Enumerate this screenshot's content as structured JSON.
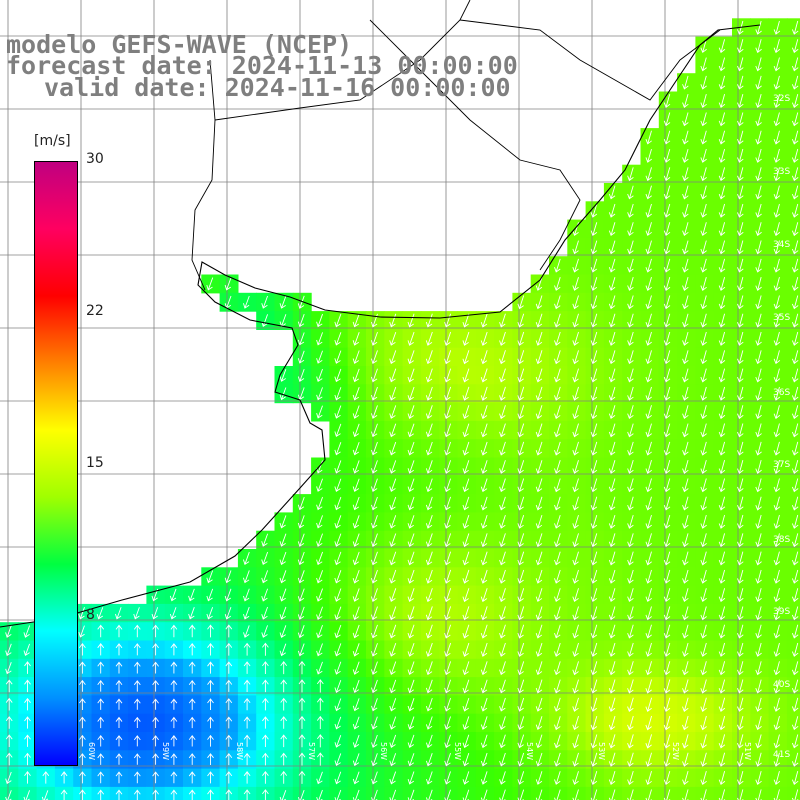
{
  "title": {
    "model": "modelo GEFS-WAVE (NCEP)",
    "forecast": "forecast date: 2024-11-13 00:00:00",
    "valid": "valid date: 2024-11-16 00:00:00"
  },
  "colorbar": {
    "unit": "[m/s]",
    "ticks": [
      "30",
      "22",
      "15",
      "8"
    ],
    "tick_values": [
      30,
      22,
      15,
      8
    ],
    "range": [
      0,
      30
    ],
    "colors": [
      "#0000ff",
      "#0090ff",
      "#00ffff",
      "#00ff40",
      "#a0ff00",
      "#ffff00",
      "#ff8000",
      "#ff0000",
      "#ff0060",
      "#c00080"
    ]
  },
  "lon_labels": [
    "60W",
    "59W",
    "58W",
    "57W",
    "56W",
    "55W",
    "54W",
    "53W",
    "52W",
    "51W"
  ],
  "lat_labels": [
    "32S",
    "33S",
    "34S",
    "35S",
    "36S",
    "37S",
    "38S",
    "39S",
    "40S",
    "41S"
  ],
  "colors": {
    "land": "#ffffff",
    "grid": "#808080",
    "coast": "#000000",
    "arrow": "#ffffff",
    "title": "#7f7f7f"
  },
  "map": {
    "wind_direction": "predominantly from the north over the open ocean, turning to southerly near the southwest coast"
  }
}
